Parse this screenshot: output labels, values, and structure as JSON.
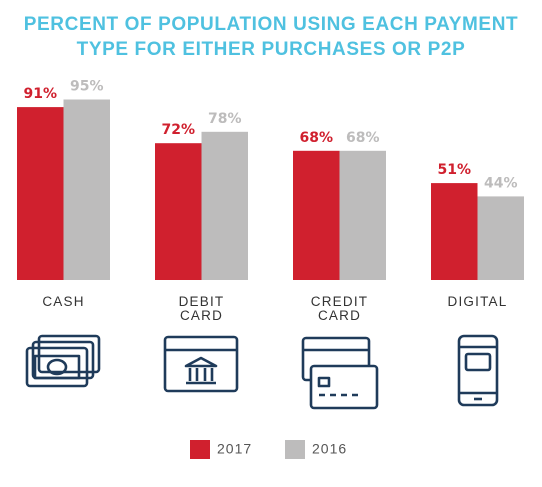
{
  "chart_data": {
    "type": "bar",
    "title": "PERCENT OF POPULATION USING EACH PAYMENT TYPE FOR EITHER PURCHASES OR P2P",
    "categories": [
      "CASH",
      "DEBIT CARD",
      "CREDIT CARD",
      "DIGITAL"
    ],
    "series": [
      {
        "name": "2017",
        "color": "#d0202e",
        "values": [
          91,
          72,
          68,
          51
        ],
        "value_labels": [
          "91%",
          "72%",
          "68%",
          "51%"
        ]
      },
      {
        "name": "2016",
        "color": "#bdbcbc",
        "values": [
          95,
          78,
          68,
          44
        ],
        "value_labels": [
          "95%",
          "78%",
          "68%",
          "44%"
        ]
      }
    ]
  }
}
